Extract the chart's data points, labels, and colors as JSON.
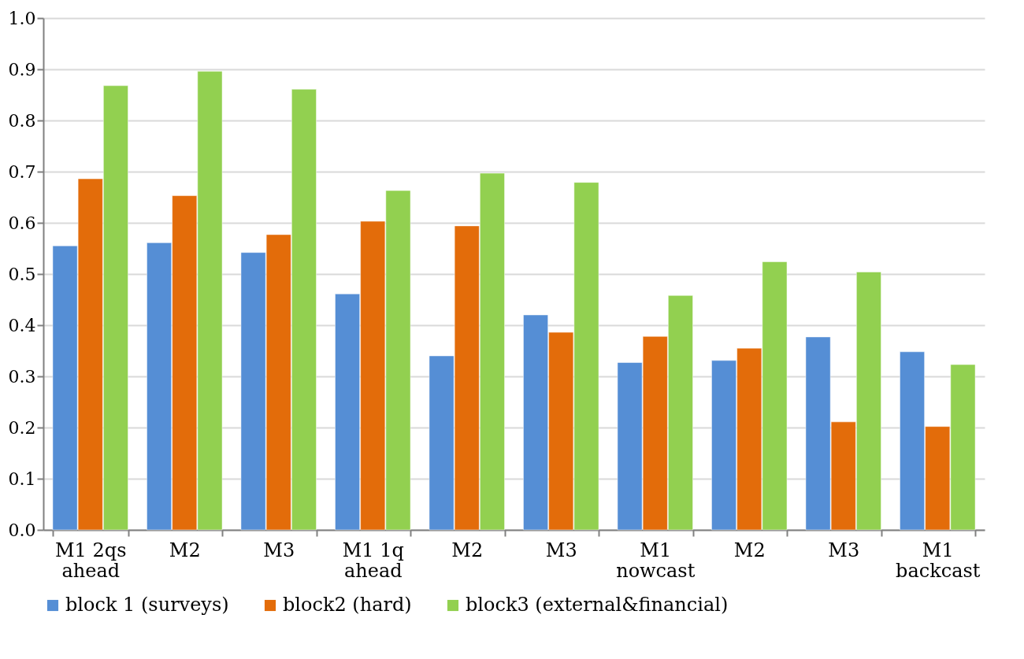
{
  "chart_data": {
    "type": "bar",
    "categories": [
      "M1  2qs\nahead",
      "M2",
      "M3",
      "M1 1q\nahead",
      "M2",
      "M3",
      "M1\nnowcast",
      "M2",
      "M3",
      "M1\nbackcast"
    ],
    "series": [
      {
        "name": "block 1 (surveys)",
        "color": "#558ed5",
        "values": [
          0.555,
          0.561,
          0.542,
          0.461,
          0.34,
          0.42,
          0.327,
          0.331,
          0.377,
          0.348
        ]
      },
      {
        "name": "block2 (hard)",
        "color": "#e36c0a",
        "values": [
          0.686,
          0.653,
          0.577,
          0.603,
          0.594,
          0.386,
          0.378,
          0.355,
          0.211,
          0.202
        ]
      },
      {
        "name": "block3 (external&financial)",
        "color": "#92d050",
        "values": [
          0.868,
          0.896,
          0.861,
          0.663,
          0.697,
          0.679,
          0.458,
          0.524,
          0.504,
          0.323
        ]
      }
    ],
    "ylim": [
      0,
      1.0
    ],
    "yticks": [
      {
        "value": 0,
        "label": "0.0"
      },
      0.1,
      0.2,
      0.3,
      0.4,
      0.5,
      0.6,
      0.7,
      0.8,
      0.9,
      {
        "value": 1,
        "label": "1.0"
      }
    ],
    "grid": "y",
    "legend": "bottom"
  }
}
